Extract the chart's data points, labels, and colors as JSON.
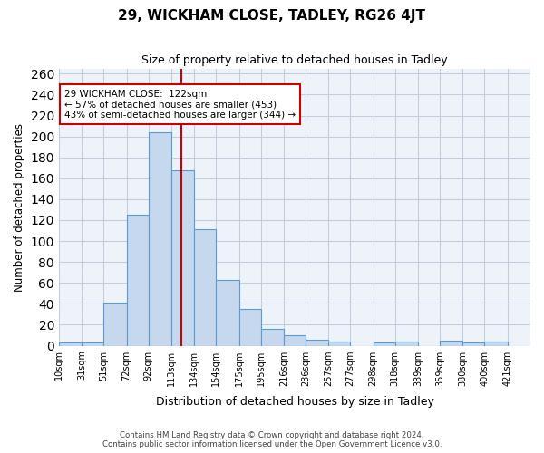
{
  "title": "29, WICKHAM CLOSE, TADLEY, RG26 4JT",
  "subtitle": "Size of property relative to detached houses in Tadley",
  "xlabel": "Distribution of detached houses by size in Tadley",
  "ylabel": "Number of detached properties",
  "bin_labels": [
    "10sqm",
    "31sqm",
    "51sqm",
    "72sqm",
    "92sqm",
    "113sqm",
    "134sqm",
    "154sqm",
    "175sqm",
    "195sqm",
    "216sqm",
    "236sqm",
    "257sqm",
    "277sqm",
    "298sqm",
    "318sqm",
    "339sqm",
    "359sqm",
    "380sqm",
    "400sqm",
    "421sqm"
  ],
  "bin_edges": [
    10,
    31,
    51,
    72,
    92,
    113,
    134,
    154,
    175,
    195,
    216,
    236,
    257,
    277,
    298,
    318,
    339,
    359,
    380,
    400,
    421
  ],
  "bar_heights": [
    3,
    3,
    41,
    125,
    204,
    168,
    111,
    63,
    35,
    16,
    10,
    6,
    4,
    0,
    3,
    4,
    0,
    5,
    3,
    4
  ],
  "bar_color": "#c5d8ed",
  "bar_edge_color": "#5b9bd5",
  "grid_color": "#c0cfe0",
  "background_color": "#eef3f9",
  "vline_x": 122,
  "vline_color": "#cc0000",
  "annotation_title": "29 WICKHAM CLOSE:  122sqm",
  "annotation_line1": "← 57% of detached houses are smaller (453)",
  "annotation_line2": "43% of semi-detached houses are larger (344) →",
  "annotation_box_color": "#ffffff",
  "annotation_border_color": "#cc0000",
  "ylim": [
    0,
    265
  ],
  "yticks": [
    0,
    20,
    40,
    60,
    80,
    100,
    120,
    140,
    160,
    180,
    200,
    220,
    240,
    260
  ],
  "footer_line1": "Contains HM Land Registry data © Crown copyright and database right 2024.",
  "footer_line2": "Contains public sector information licensed under the Open Government Licence v3.0."
}
